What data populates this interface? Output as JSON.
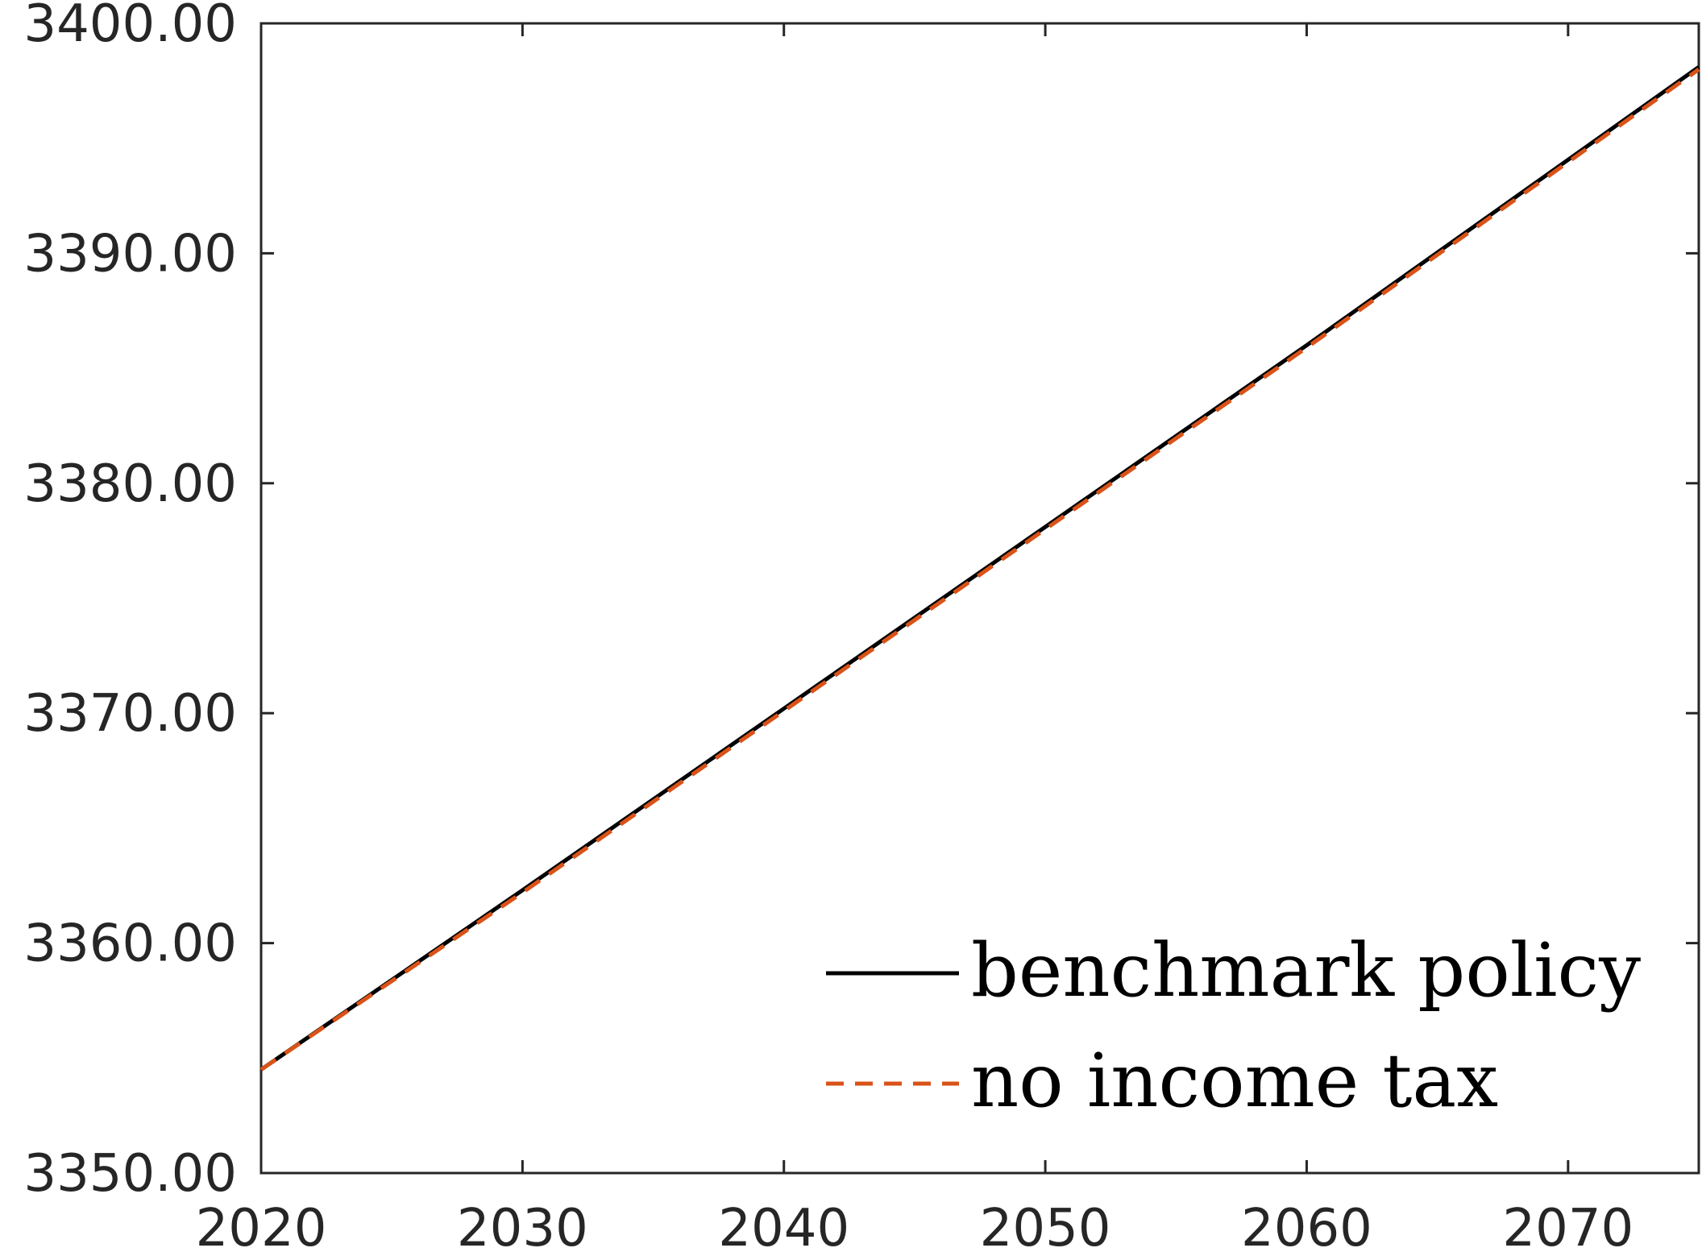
{
  "chart_data": {
    "type": "line",
    "title": "",
    "xlabel": "",
    "ylabel": "",
    "xlim": [
      2020,
      2075
    ],
    "ylim": [
      3350,
      3400
    ],
    "xticks": [
      2020,
      2030,
      2040,
      2050,
      2060,
      2070
    ],
    "yticks": [
      3350,
      3360,
      3370,
      3380,
      3390,
      3400
    ],
    "xtick_labels": [
      "2020",
      "2030",
      "2040",
      "2050",
      "2060",
      "2070"
    ],
    "ytick_labels": [
      "3350.00",
      "3360.00",
      "3370.00",
      "3380.00",
      "3390.00",
      "3400.00"
    ],
    "grid": false,
    "legend_position": "bottom-right",
    "series": [
      {
        "name": "benchmark policy",
        "color": "#000000",
        "style": "solid",
        "x": [
          2020,
          2030,
          2040,
          2050,
          2060,
          2075
        ],
        "y": [
          3354.5,
          3362.3,
          3370.2,
          3378.1,
          3386.0,
          3398.1
        ]
      },
      {
        "name": "no income tax",
        "color": "#D95319",
        "style": "dashed",
        "x": [
          2020,
          2030,
          2040,
          2050,
          2060,
          2075
        ],
        "y": [
          3354.5,
          3362.2,
          3370.1,
          3378.0,
          3385.9,
          3398.0
        ]
      }
    ]
  }
}
